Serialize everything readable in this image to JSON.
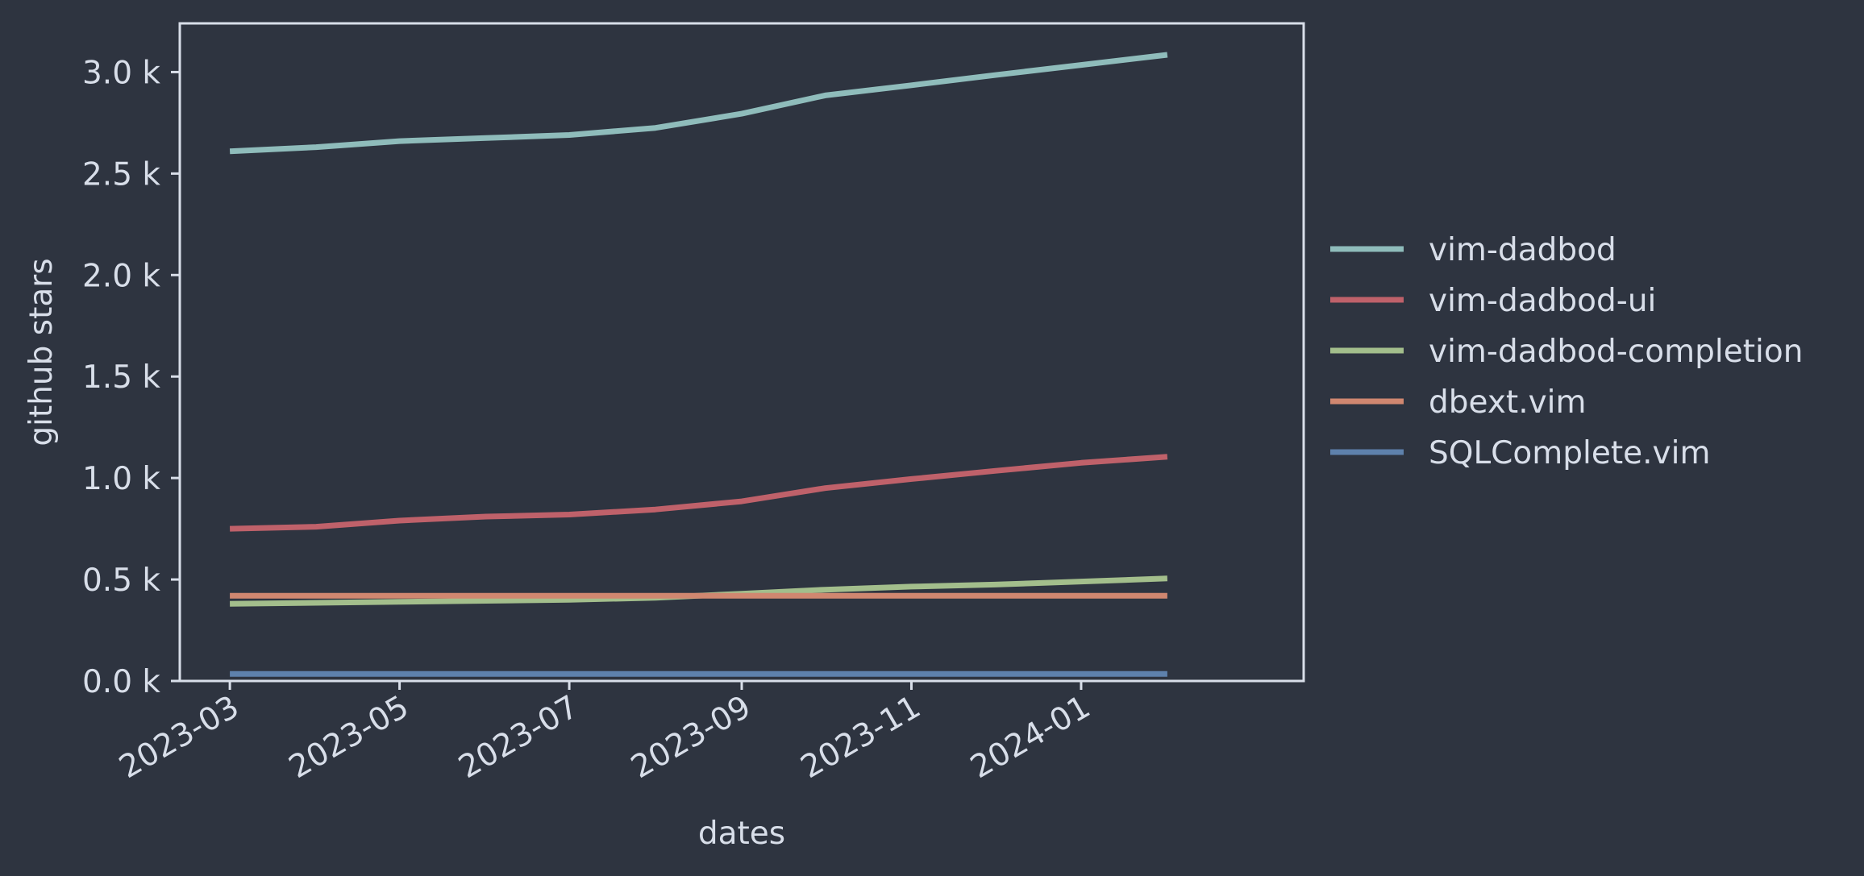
{
  "chart_data": {
    "type": "line",
    "xlabel": "dates",
    "ylabel": "github stars",
    "x_ticks": [
      "2023-03",
      "2023-05",
      "2023-07",
      "2023-09",
      "2023-11",
      "2024-01"
    ],
    "y_ticks": [
      "0.0 k",
      "0.5 k",
      "1.0 k",
      "1.5 k",
      "2.0 k",
      "2.5 k",
      "3.0 k"
    ],
    "ylim": [
      0,
      3.24
    ],
    "y_unit": "k",
    "xlim": [
      "2023-02-11",
      "2024-03-21"
    ],
    "x": [
      "2023-03-01",
      "2023-04-01",
      "2023-05-01",
      "2023-06-01",
      "2023-07-01",
      "2023-08-01",
      "2023-09-01",
      "2023-10-01",
      "2023-11-01",
      "2023-12-01",
      "2024-01-01",
      "2024-02-01"
    ],
    "series": [
      {
        "name": "vim-dadbod",
        "color": "#8fbcbb",
        "values": [
          2.61,
          2.63,
          2.66,
          2.675,
          2.69,
          2.725,
          2.795,
          2.885,
          2.935,
          2.985,
          3.035,
          3.085
        ]
      },
      {
        "name": "vim-dadbod-ui",
        "color": "#bf616a",
        "values": [
          0.75,
          0.76,
          0.79,
          0.81,
          0.82,
          0.845,
          0.885,
          0.95,
          0.995,
          1.035,
          1.075,
          1.105
        ]
      },
      {
        "name": "vim-dadbod-completion",
        "color": "#a3be8c",
        "values": [
          0.38,
          0.385,
          0.39,
          0.395,
          0.4,
          0.41,
          0.43,
          0.45,
          0.465,
          0.475,
          0.49,
          0.505
        ]
      },
      {
        "name": "dbext.vim",
        "color": "#d08770",
        "values": [
          0.42,
          0.42,
          0.42,
          0.42,
          0.42,
          0.42,
          0.42,
          0.42,
          0.42,
          0.42,
          0.42,
          0.42
        ]
      },
      {
        "name": "SQLComplete.vim",
        "color": "#5e81ac",
        "values": [
          0.035,
          0.035,
          0.035,
          0.035,
          0.035,
          0.035,
          0.035,
          0.035,
          0.035,
          0.035,
          0.035,
          0.035
        ]
      }
    ],
    "grid": false,
    "legend_position": "right",
    "colors": {
      "background": "#2e3440",
      "axes": "#d8dee9",
      "text": "#d8dee9"
    }
  }
}
